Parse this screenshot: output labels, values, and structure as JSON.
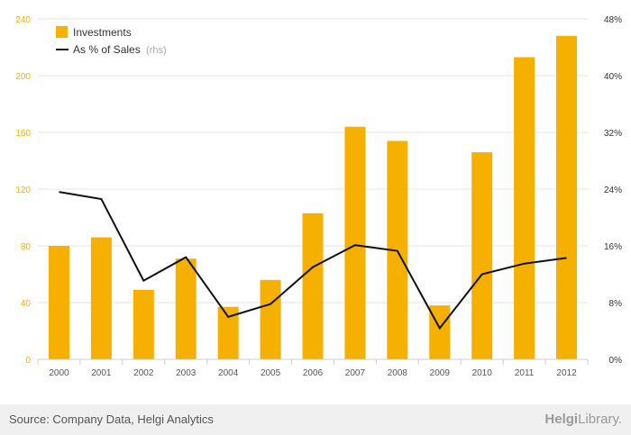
{
  "chart_data": {
    "type": "bar",
    "categories": [
      "2000",
      "2001",
      "2002",
      "2003",
      "2004",
      "2005",
      "2006",
      "2007",
      "2008",
      "2009",
      "2010",
      "2011",
      "2012"
    ],
    "series": [
      {
        "name": "Investments",
        "type": "bar",
        "axis": "left",
        "color": "#f5b000",
        "values": [
          80,
          86,
          49,
          71,
          37,
          56,
          103,
          164,
          154,
          38,
          146,
          213,
          228
        ]
      },
      {
        "name": "As % of Sales",
        "name_suffix": "(rhs)",
        "type": "line",
        "axis": "right",
        "color": "#111111",
        "values": [
          23.6,
          22.6,
          11.1,
          14.4,
          6.0,
          7.8,
          13.0,
          16.1,
          15.3,
          4.4,
          12.0,
          13.5,
          14.3
        ]
      }
    ],
    "y_left": {
      "ylim": [
        0,
        240
      ],
      "ticks": [
        "0",
        "40",
        "80",
        "120",
        "160",
        "200",
        "240"
      ]
    },
    "y_right": {
      "ylim": [
        0,
        48
      ],
      "ticks": [
        "0%",
        "8%",
        "16%",
        "24%",
        "32%",
        "40%",
        "48%"
      ]
    },
    "grid": true,
    "legend_position": "top-left"
  },
  "footer": {
    "source": "Source: Company Data, Helgi Analytics",
    "logo_main": "Helgi",
    "logo_light": "Library."
  }
}
